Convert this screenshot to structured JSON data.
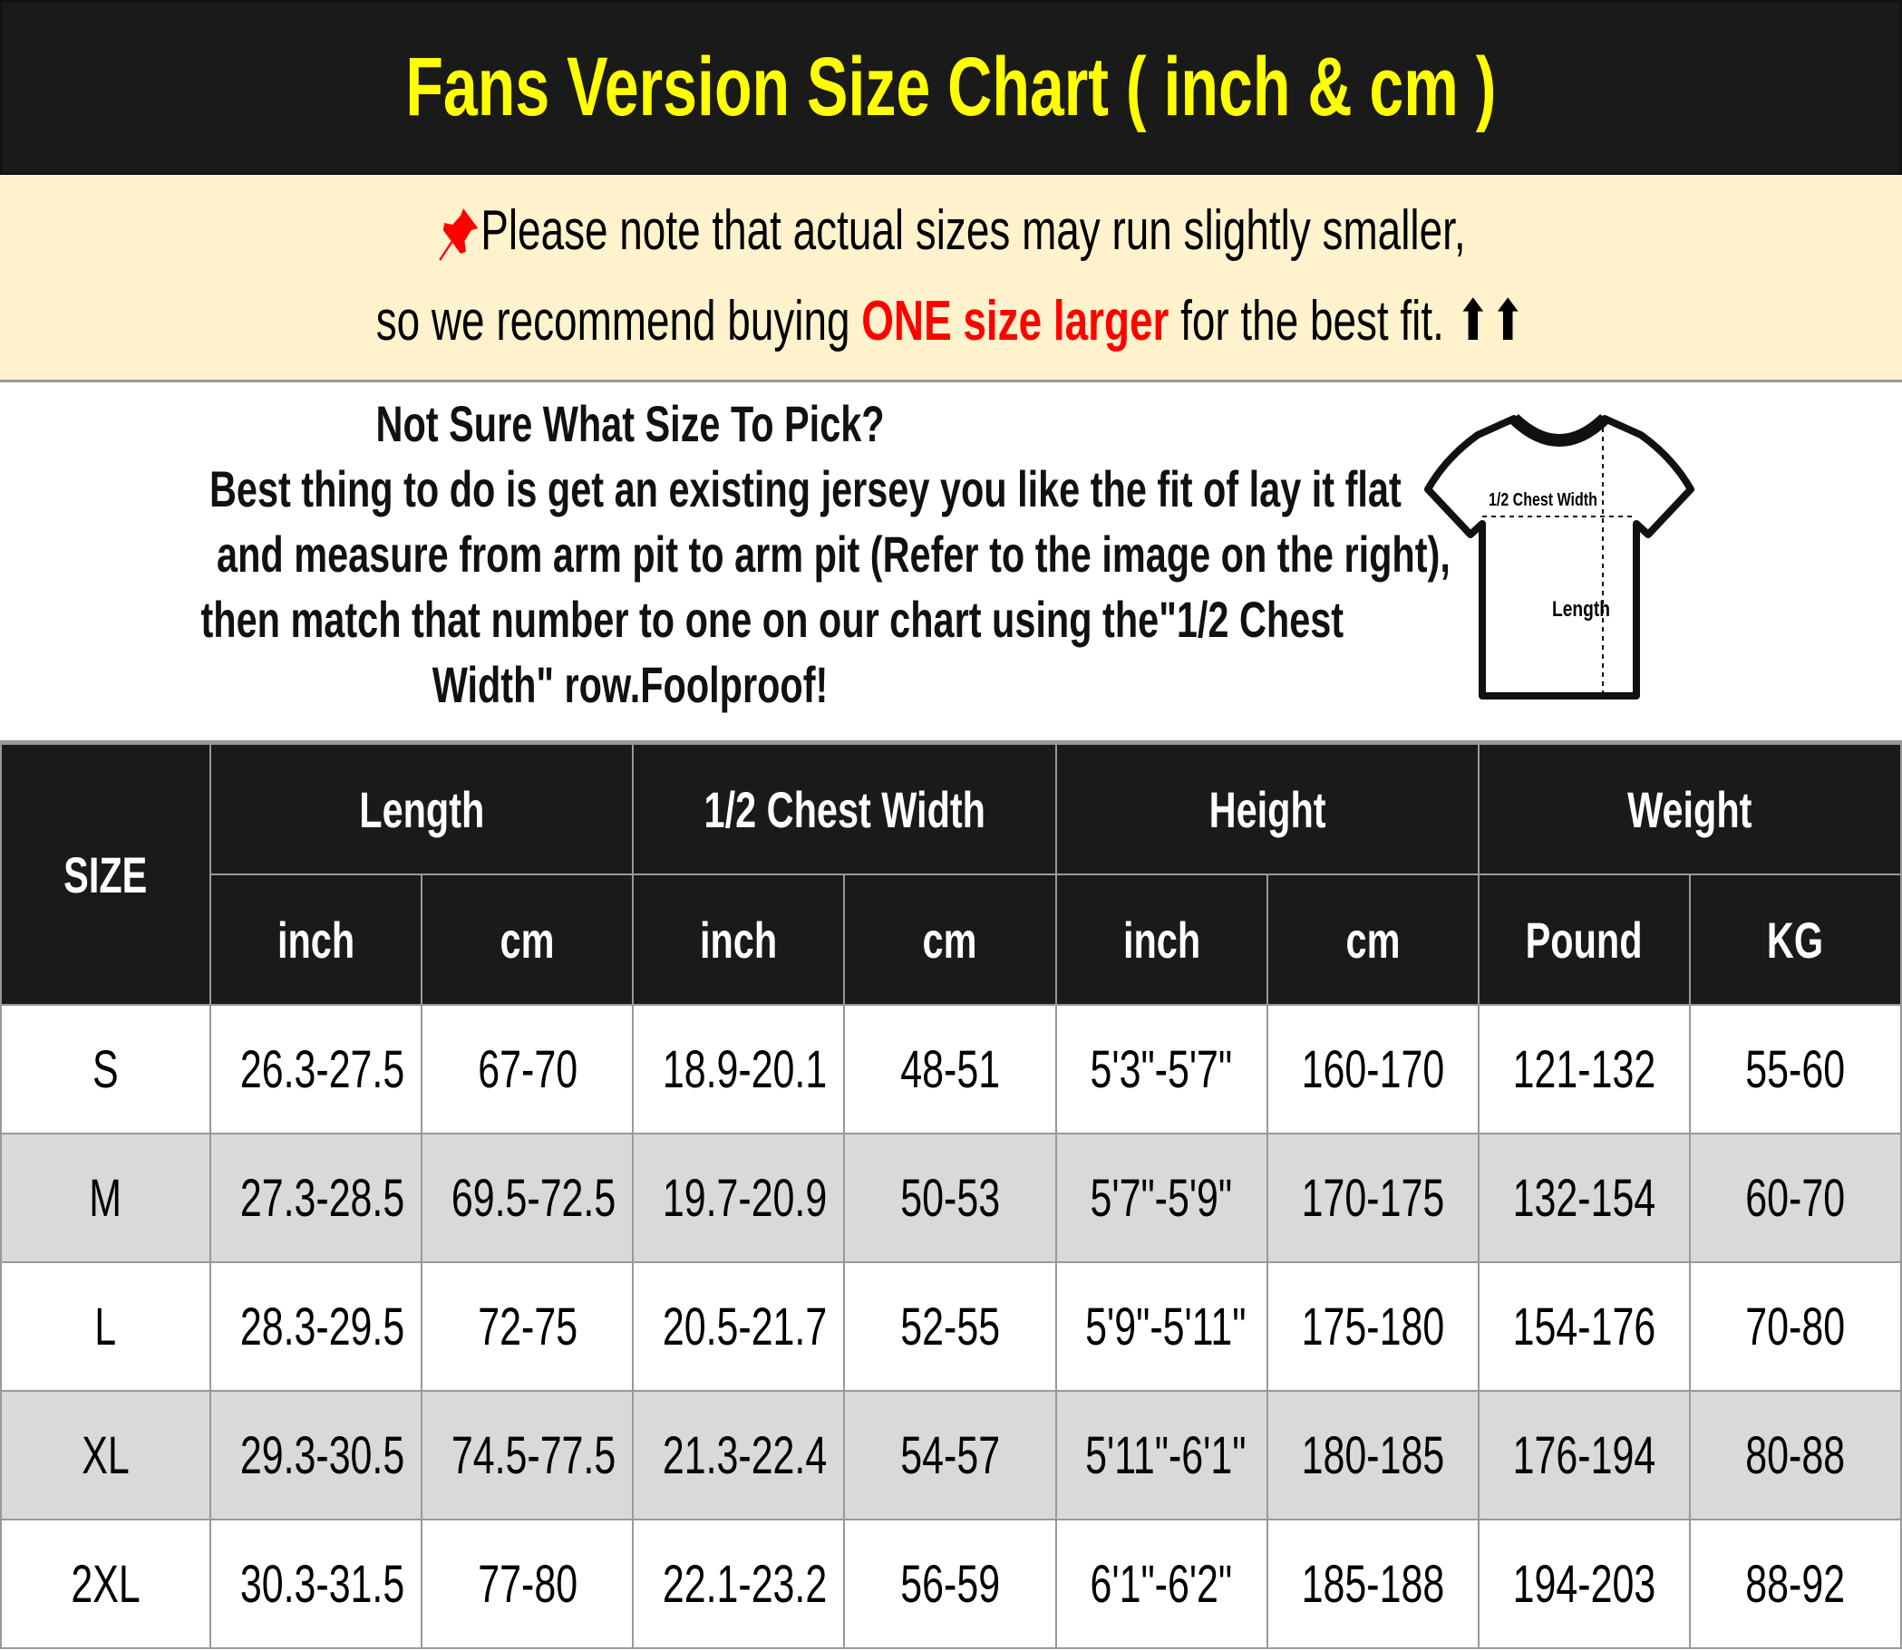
{
  "title": "Fans Version Size Chart ( inch & cm )",
  "note": {
    "icon": "pushpin-icon",
    "line1": "Please note that actual sizes may run slightly smaller,",
    "line2_prefix": "so we recommend buying ",
    "line2_highlight": "ONE size larger",
    "line2_suffix": " for the best fit. ",
    "arrows": "⬆⬆",
    "highlight_color": "#ff0000",
    "background": "#fff2cc"
  },
  "info": {
    "lines": [
      "Not Sure What Size To Pick?",
      "Best thing to do is get an existing jersey you like the fit of lay it flat",
      "and measure from arm pit to arm pit (Refer to the image on the right),",
      "then match that number to one on our chart using the\"1/2 Chest",
      "Width\" row.Foolproof!"
    ],
    "diagram": {
      "chest_label": "1/2 Chest Width",
      "length_label": "Length"
    }
  },
  "table": {
    "size_header": "SIZE",
    "groups": [
      "Length",
      "1/2 Chest Width",
      "Height",
      "Weight"
    ],
    "units": [
      "inch",
      "cm",
      "inch",
      "cm",
      "inch",
      "cm",
      "Pound",
      "KG"
    ],
    "rows": [
      [
        "S",
        "26.3-27.5",
        "67-70",
        "18.9-20.1",
        "48-51",
        "5'3\"-5'7\"",
        "160-170",
        "121-132",
        "55-60"
      ],
      [
        "M",
        "27.3-28.5",
        "69.5-72.5",
        "19.7-20.9",
        "50-53",
        "5'7\"-5'9\"",
        "170-175",
        "132-154",
        "60-70"
      ],
      [
        "L",
        "28.3-29.5",
        "72-75",
        "20.5-21.7",
        "52-55",
        "5'9\"-5'11\"",
        "175-180",
        "154-176",
        "70-80"
      ],
      [
        "XL",
        "29.3-30.5",
        "74.5-77.5",
        "21.3-22.4",
        "54-57",
        "5'11\"-6'1\"",
        "180-185",
        "176-194",
        "80-88"
      ],
      [
        "2XL",
        "30.3-31.5",
        "77-80",
        "22.1-23.2",
        "56-59",
        "6'1\"-6'2\"",
        "185-188",
        "194-203",
        "88-92"
      ]
    ]
  }
}
